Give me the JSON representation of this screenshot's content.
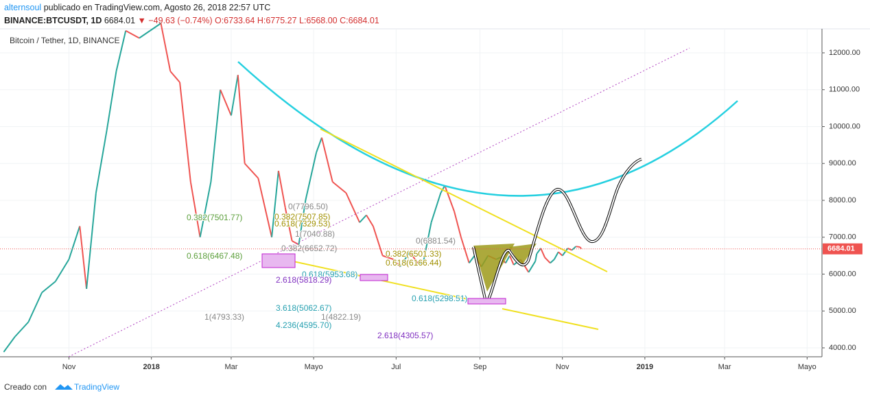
{
  "header": {
    "author": "alternsoul",
    "published": "publicado en TradingView.com, Agosto 26, 2018 22:57 UTC",
    "symbol": "BINANCE:BTCUSDT, 1D",
    "last": "6684.01",
    "change": "▼ −49.63 (−0.74%)",
    "ohlc": "O:6733.64 H:6775.27 L:6568.00 C:6684.01"
  },
  "footer": {
    "created": "Creado con",
    "brand": "TradingView"
  },
  "annotations": [
    "0.382(7501.77)",
    "0.618(6467.48)",
    "0(7796.50)",
    "0.382(7507.85)",
    "0.618(7329.53)",
    "1(7040.88)",
    "0.382(6652.72)",
    "0(6881.54)",
    "0.382(6501.33)",
    "0.618(6166.44)",
    "0.618(5953.68)",
    "2.618(5818.29)",
    "0.618(5298.51)",
    "3.618(5062.67)",
    "1(4793.33)",
    "1(4822.19)",
    "4.236(4595.70)",
    "2.618(4305.57)"
  ],
  "chart_data": {
    "type": "line",
    "title": "Bitcoin / Tether, 1D, BINANCE",
    "x": [
      -48,
      -40,
      -30,
      -20,
      -10,
      0,
      8,
      13,
      20,
      28,
      35,
      42,
      52,
      60,
      68,
      75,
      82,
      90,
      97,
      105,
      112,
      120,
      125,
      130,
      140,
      150,
      155,
      160,
      165,
      170,
      175,
      183,
      187,
      195,
      205,
      215,
      220,
      225,
      232,
      240,
      245,
      252,
      258,
      262,
      268,
      275,
      278,
      285,
      290,
      296,
      300,
      305,
      310,
      316,
      319,
      323,
      326,
      329,
      334,
      340,
      345,
      346,
      349,
      352,
      356,
      359,
      362,
      365,
      369,
      372,
      375,
      378,
      379
    ],
    "values": [
      3900,
      4300,
      4700,
      5500,
      5800,
      6400,
      7300,
      5600,
      8200,
      9900,
      11500,
      12600,
      12400,
      12600,
      12800,
      11500,
      11200,
      8500,
      7000,
      8500,
      11000,
      10300,
      11400,
      9000,
      8600,
      7000,
      8800,
      7800,
      6900,
      6800,
      8000,
      9300,
      9700,
      8500,
      8200,
      7400,
      7600,
      7300,
      6500,
      6400,
      6200,
      6600,
      6300,
      6300,
      7400,
      8200,
      8400,
      7700,
      7000,
      6300,
      6500,
      6200,
      6500,
      6400,
      6450,
      6300,
      6500,
      6250,
      6400,
      6050,
      6350,
      6550,
      6700,
      6450,
      6300,
      6400,
      6600,
      6500,
      6700,
      6650,
      6750,
      6733.64,
      6684.01
    ],
    "colors": {
      "up": "#26a69a",
      "down": "#ef5350"
    },
    "last": 6684.01,
    "ylim": [
      3758,
      12651
    ],
    "yticks": [
      {
        "value": 4000,
        "label": "4000.00"
      },
      {
        "value": 5000,
        "label": "5000.00"
      },
      {
        "value": 6000,
        "label": "6000.00"
      },
      {
        "value": 7000,
        "label": "7000.00"
      },
      {
        "value": 8000,
        "label": "8000.00"
      },
      {
        "value": 9000,
        "label": "9000.00"
      },
      {
        "value": 10000,
        "label": "10000.00"
      },
      {
        "value": 11000,
        "label": "11000.00"
      },
      {
        "value": 12000,
        "label": "12000.00"
      }
    ],
    "xlim": [
      -51,
      557
    ],
    "xticks": [
      {
        "value": 0,
        "label": "Nov"
      },
      {
        "value": 61,
        "label": "2018"
      },
      {
        "value": 120,
        "label": "Mar"
      },
      {
        "value": 181,
        "label": "Mayo"
      },
      {
        "value": 242,
        "label": "Jul"
      },
      {
        "value": 304,
        "label": "Sep"
      },
      {
        "value": 365,
        "label": "Nov"
      },
      {
        "value": 426,
        "label": "2019"
      },
      {
        "value": 485,
        "label": "Mar"
      },
      {
        "value": 546,
        "label": "Mayo"
      }
    ],
    "grid": true
  }
}
